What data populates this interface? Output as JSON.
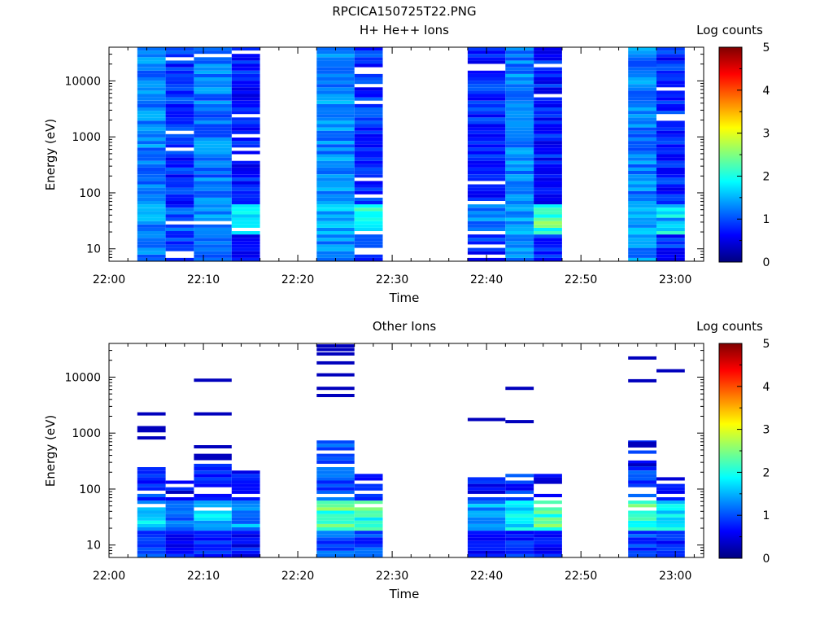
{
  "figure_title": "RPCICA150725T22.PNG",
  "chart_data": [
    {
      "type": "heatmap",
      "title": "H+ He++ Ions",
      "xlabel": "Time",
      "ylabel": "Energy (eV)",
      "y_scale": "log",
      "xlim": [
        "22:00",
        "23:03"
      ],
      "ylim": [
        6,
        40000
      ],
      "x_ticks": [
        "22:00",
        "22:10",
        "22:20",
        "22:30",
        "22:40",
        "22:50",
        "23:00"
      ],
      "y_ticks": [
        "10",
        "100",
        "1000",
        "10000"
      ],
      "colorbar": {
        "label": "Log counts",
        "range": [
          0,
          5
        ],
        "ticks": [
          "0",
          "1",
          "2",
          "3",
          "4",
          "5"
        ]
      },
      "columns": [
        {
          "t_start": "22:03",
          "t_end": "22:06",
          "seed": 11,
          "base": 0.95,
          "gap_rate": 0.0,
          "low_boost": 0.1
        },
        {
          "t_start": "22:06",
          "t_end": "22:09",
          "seed": 12,
          "base": 0.55,
          "gap_rate": 0.12,
          "low_boost": 0.2
        },
        {
          "t_start": "22:09",
          "t_end": "22:13",
          "seed": 13,
          "base": 0.9,
          "gap_rate": 0.02,
          "low_boost": 0.1
        },
        {
          "t_start": "22:13",
          "t_end": "22:16",
          "seed": 14,
          "base": 0.45,
          "gap_rate": 0.14,
          "low_boost": 1.2
        },
        {
          "t_start": "22:22",
          "t_end": "22:26",
          "seed": 21,
          "base": 1.0,
          "gap_rate": 0.0,
          "low_boost": 0.3
        },
        {
          "t_start": "22:26",
          "t_end": "22:29",
          "seed": 22,
          "base": 0.55,
          "gap_rate": 0.08,
          "low_boost": 1.3
        },
        {
          "t_start": "22:38",
          "t_end": "22:42",
          "seed": 31,
          "base": 0.5,
          "gap_rate": 0.12,
          "low_boost": 0.5
        },
        {
          "t_start": "22:42",
          "t_end": "22:45",
          "seed": 32,
          "base": 0.95,
          "gap_rate": 0.0,
          "low_boost": 0.2
        },
        {
          "t_start": "22:45",
          "t_end": "22:48",
          "seed": 33,
          "base": 0.45,
          "gap_rate": 0.1,
          "low_boost": 1.8
        },
        {
          "t_start": "22:55",
          "t_end": "22:58",
          "seed": 41,
          "base": 0.95,
          "gap_rate": 0.0,
          "low_boost": 0.2
        },
        {
          "t_start": "22:58",
          "t_end": "23:01",
          "seed": 42,
          "base": 0.5,
          "gap_rate": 0.1,
          "low_boost": 1.1
        }
      ]
    },
    {
      "type": "heatmap",
      "title": "Other Ions",
      "xlabel": "Time",
      "ylabel": "Energy (eV)",
      "y_scale": "log",
      "xlim": [
        "22:00",
        "23:03"
      ],
      "ylim": [
        6,
        40000
      ],
      "x_ticks": [
        "22:00",
        "22:10",
        "22:20",
        "22:30",
        "22:40",
        "22:50",
        "23:00"
      ],
      "y_ticks": [
        "10",
        "100",
        "1000",
        "10000"
      ],
      "colorbar": {
        "label": "Log counts",
        "range": [
          0,
          5
        ],
        "ticks": [
          "0",
          "1",
          "2",
          "3",
          "4",
          "5"
        ]
      },
      "columns": [
        {
          "t_start": "22:03",
          "t_end": "22:06",
          "seed": 51,
          "top": 280,
          "base": 0.6,
          "low_boost": 0.8,
          "lines": [
            2200,
            1250,
            1100,
            820
          ]
        },
        {
          "t_start": "22:06",
          "t_end": "22:09",
          "seed": 52,
          "top": 170,
          "base": 0.3,
          "low_boost": 0.7,
          "lines": []
        },
        {
          "t_start": "22:09",
          "t_end": "22:13",
          "seed": 53,
          "top": 280,
          "base": 0.6,
          "low_boost": 1.0,
          "lines": [
            8800,
            2200,
            570,
            400,
            350
          ]
        },
        {
          "t_start": "22:13",
          "t_end": "22:16",
          "seed": 54,
          "top": 270,
          "base": 0.3,
          "low_boost": 0.9,
          "lines": []
        },
        {
          "t_start": "22:22",
          "t_end": "22:26",
          "seed": 61,
          "top": 750,
          "base": 0.7,
          "low_boost": 1.5,
          "lines": [
            36000,
            31000,
            26000,
            18000,
            11000,
            6300,
            4700
          ]
        },
        {
          "t_start": "22:26",
          "t_end": "22:29",
          "seed": 62,
          "top": 190,
          "base": 0.6,
          "low_boost": 1.6,
          "lines": []
        },
        {
          "t_start": "22:38",
          "t_end": "22:42",
          "seed": 71,
          "top": 170,
          "base": 0.35,
          "low_boost": 0.9,
          "lines": [
            1750
          ]
        },
        {
          "t_start": "22:42",
          "t_end": "22:45",
          "seed": 72,
          "top": 260,
          "base": 0.55,
          "low_boost": 1.3,
          "lines": [
            6300,
            1600
          ]
        },
        {
          "t_start": "22:45",
          "t_end": "22:48",
          "seed": 73,
          "top": 190,
          "base": 0.35,
          "low_boost": 2.0,
          "lines": []
        },
        {
          "t_start": "22:55",
          "t_end": "22:58",
          "seed": 81,
          "top": 700,
          "base": 0.6,
          "low_boost": 1.5,
          "lines": [
            22000,
            8600,
            660,
            590,
            270
          ]
        },
        {
          "t_start": "22:58",
          "t_end": "23:01",
          "seed": 82,
          "top": 170,
          "base": 0.4,
          "low_boost": 1.4,
          "lines": [
            13000
          ]
        }
      ]
    }
  ]
}
